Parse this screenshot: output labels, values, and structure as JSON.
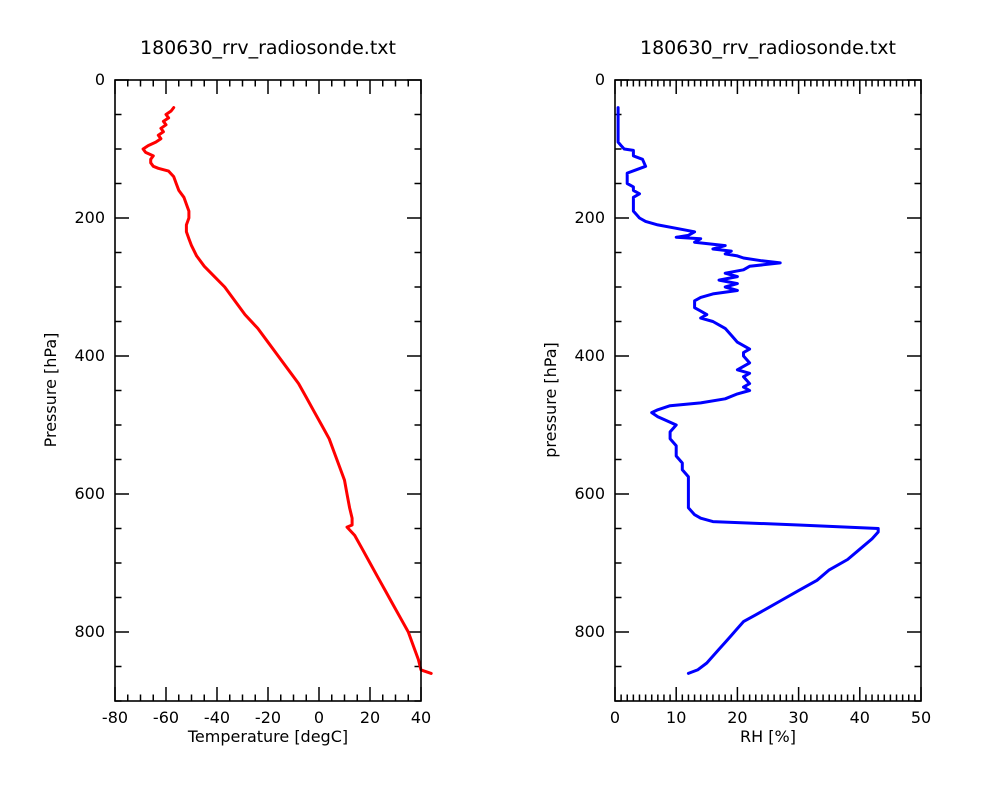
{
  "colors": {
    "temperature_line": "#ff0000",
    "rh_line": "#0000ff"
  },
  "chart_data": [
    {
      "type": "line",
      "title": "180630_rrv_radiosonde.txt",
      "xlabel": "Temperature [degC]",
      "ylabel": "Pressure [hPa]",
      "xlim": [
        -80,
        40
      ],
      "ylim": [
        900,
        0
      ],
      "x_ticks": [
        -80,
        -60,
        -40,
        -20,
        0,
        20,
        40
      ],
      "y_ticks": [
        0,
        200,
        400,
        600,
        800
      ],
      "x_minor_step": 5,
      "y_minor_step": 50,
      "series": [
        {
          "color": "#ff0000",
          "points": [
            [
              -57,
              40
            ],
            [
              -58,
              45
            ],
            [
              -60,
              50
            ],
            [
              -59,
              55
            ],
            [
              -61,
              60
            ],
            [
              -60,
              65
            ],
            [
              -62,
              70
            ],
            [
              -61,
              75
            ],
            [
              -63,
              80
            ],
            [
              -62,
              85
            ],
            [
              -64,
              90
            ],
            [
              -67,
              95
            ],
            [
              -69,
              100
            ],
            [
              -68,
              105
            ],
            [
              -65,
              110
            ],
            [
              -66,
              115
            ],
            [
              -66,
              120
            ],
            [
              -65,
              125
            ],
            [
              -63,
              128
            ],
            [
              -61,
              130
            ],
            [
              -59,
              132
            ],
            [
              -57,
              140
            ],
            [
              -56,
              150
            ],
            [
              -55,
              160
            ],
            [
              -53,
              170
            ],
            [
              -52,
              180
            ],
            [
              -51,
              190
            ],
            [
              -51,
              200
            ],
            [
              -52,
              210
            ],
            [
              -52,
              220
            ],
            [
              -51,
              230
            ],
            [
              -50,
              240
            ],
            [
              -48,
              255
            ],
            [
              -45,
              270
            ],
            [
              -41,
              285
            ],
            [
              -37,
              300
            ],
            [
              -33,
              320
            ],
            [
              -29,
              340
            ],
            [
              -24,
              360
            ],
            [
              -20,
              380
            ],
            [
              -16,
              400
            ],
            [
              -12,
              420
            ],
            [
              -8,
              440
            ],
            [
              -5,
              460
            ],
            [
              -2,
              480
            ],
            [
              1,
              500
            ],
            [
              4,
              520
            ],
            [
              6,
              540
            ],
            [
              8,
              560
            ],
            [
              10,
              580
            ],
            [
              11,
              600
            ],
            [
              12,
              620
            ],
            [
              13,
              635
            ],
            [
              13,
              645
            ],
            [
              11,
              648
            ],
            [
              14,
              660
            ],
            [
              17,
              680
            ],
            [
              20,
              700
            ],
            [
              23,
              720
            ],
            [
              26,
              740
            ],
            [
              29,
              760
            ],
            [
              32,
              780
            ],
            [
              35,
              800
            ],
            [
              37,
              820
            ],
            [
              39,
              840
            ],
            [
              40,
              855
            ],
            [
              44,
              860
            ]
          ]
        }
      ]
    },
    {
      "type": "line",
      "title": "180630_rrv_radiosonde.txt",
      "xlabel": "RH [%]",
      "ylabel": "pressure [hPa]",
      "xlim": [
        0,
        50
      ],
      "ylim": [
        900,
        0
      ],
      "x_ticks": [
        0,
        10,
        20,
        30,
        40,
        50
      ],
      "y_ticks": [
        0,
        200,
        400,
        600,
        800
      ],
      "x_minor_step": 1,
      "y_minor_step": 50,
      "series": [
        {
          "color": "#0000ff",
          "points": [
            [
              0.5,
              40
            ],
            [
              0.5,
              90
            ],
            [
              1,
              95
            ],
            [
              1.5,
              100
            ],
            [
              3,
              102
            ],
            [
              3,
              110
            ],
            [
              4.5,
              115
            ],
            [
              5,
              125
            ],
            [
              2,
              135
            ],
            [
              2,
              150
            ],
            [
              3,
              155
            ],
            [
              3,
              160
            ],
            [
              4,
              165
            ],
            [
              3,
              170
            ],
            [
              3,
              190
            ],
            [
              4,
              200
            ],
            [
              5,
              205
            ],
            [
              7,
              210
            ],
            [
              10,
              215
            ],
            [
              13,
              220
            ],
            [
              12,
              225
            ],
            [
              10,
              228
            ],
            [
              14,
              230
            ],
            [
              13,
              235
            ],
            [
              18,
              240
            ],
            [
              16,
              245
            ],
            [
              19,
              248
            ],
            [
              18,
              252
            ],
            [
              20,
              255
            ],
            [
              21,
              258
            ],
            [
              24,
              262
            ],
            [
              27,
              265
            ],
            [
              22,
              270
            ],
            [
              21,
              275
            ],
            [
              18,
              280
            ],
            [
              20,
              285
            ],
            [
              17,
              290
            ],
            [
              20,
              295
            ],
            [
              18,
              300
            ],
            [
              20,
              305
            ],
            [
              16,
              310
            ],
            [
              14,
              315
            ],
            [
              13,
              320
            ],
            [
              13,
              330
            ],
            [
              14,
              335
            ],
            [
              15,
              340
            ],
            [
              14,
              345
            ],
            [
              16,
              350
            ],
            [
              17,
              355
            ],
            [
              18,
              360
            ],
            [
              19,
              370
            ],
            [
              20,
              380
            ],
            [
              22,
              390
            ],
            [
              21,
              395
            ],
            [
              21,
              400
            ],
            [
              22,
              410
            ],
            [
              20,
              420
            ],
            [
              22,
              425
            ],
            [
              21,
              430
            ],
            [
              22,
              440
            ],
            [
              21,
              445
            ],
            [
              22,
              450
            ],
            [
              20,
              455
            ],
            [
              18,
              462
            ],
            [
              14,
              468
            ],
            [
              9,
              472
            ],
            [
              7,
              478
            ],
            [
              6,
              482
            ],
            [
              7,
              488
            ],
            [
              8,
              492
            ],
            [
              9,
              496
            ],
            [
              10,
              500
            ],
            [
              9,
              510
            ],
            [
              9,
              520
            ],
            [
              10,
              530
            ],
            [
              10,
              545
            ],
            [
              11,
              555
            ],
            [
              11,
              565
            ],
            [
              12,
              575
            ],
            [
              12,
              600
            ],
            [
              12,
              620
            ],
            [
              13,
              630
            ],
            [
              14,
              635
            ],
            [
              16,
              640
            ],
            [
              30,
              645
            ],
            [
              43,
              650
            ],
            [
              43,
              655
            ],
            [
              42,
              665
            ],
            [
              40,
              680
            ],
            [
              38,
              695
            ],
            [
              35,
              710
            ],
            [
              33,
              725
            ],
            [
              30,
              740
            ],
            [
              27,
              755
            ],
            [
              25,
              765
            ],
            [
              23,
              775
            ],
            [
              21,
              785
            ],
            [
              20,
              795
            ],
            [
              19,
              805
            ],
            [
              18,
              815
            ],
            [
              17,
              825
            ],
            [
              16,
              835
            ],
            [
              15,
              845
            ],
            [
              13.5,
              855
            ],
            [
              12,
              860
            ]
          ]
        }
      ]
    }
  ]
}
